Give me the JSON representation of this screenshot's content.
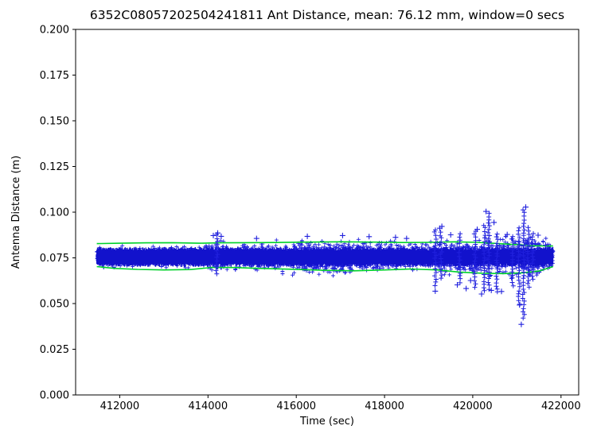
{
  "figure": {
    "background": "#ffffff"
  },
  "chart_data": {
    "type": "scatter",
    "title": "6352C08057202504241811 Ant Distance, mean: 76.12 mm, window=0 secs",
    "xlabel": "Time (sec)",
    "ylabel": "Antenna Distance (m)",
    "mean_mm": 76.12,
    "window_secs": 0,
    "xlim": [
      411000,
      422400
    ],
    "ylim": [
      0.0,
      0.2
    ],
    "xticks": [
      412000,
      414000,
      416000,
      418000,
      420000,
      422000
    ],
    "xtick_labels": [
      "412000",
      "414000",
      "416000",
      "418000",
      "420000",
      "422000"
    ],
    "yticks": [
      0.0,
      0.025,
      0.05,
      0.075,
      0.1,
      0.125,
      0.15,
      0.175,
      0.2
    ],
    "ytick_labels": [
      "0.000",
      "0.025",
      "0.050",
      "0.075",
      "0.100",
      "0.125",
      "0.150",
      "0.175",
      "0.200"
    ],
    "grid": false,
    "legend": "none",
    "colors": {
      "band_core": "#1212cc",
      "marker": "#2020dd",
      "envelope": "#00d22a",
      "axis": "#000000"
    },
    "series": [
      {
        "name": "antenna-distance-points",
        "marker": "+",
        "color": "#2020dd",
        "band": {
          "x_start": 411480,
          "x_end": 421820,
          "center": 0.0755,
          "core_half_width": 0.0045
        },
        "fuzz_profile": [
          [
            411480,
            0.0045
          ],
          [
            412200,
            0.005
          ],
          [
            413000,
            0.0048
          ],
          [
            413800,
            0.005
          ],
          [
            414150,
            0.0078
          ],
          [
            414500,
            0.0052
          ],
          [
            415000,
            0.0062
          ],
          [
            415600,
            0.007
          ],
          [
            416300,
            0.0078
          ],
          [
            417200,
            0.008
          ],
          [
            418000,
            0.0072
          ],
          [
            418500,
            0.006
          ],
          [
            419000,
            0.0058
          ],
          [
            419400,
            0.0078
          ],
          [
            420000,
            0.0072
          ],
          [
            420600,
            0.0088
          ],
          [
            421100,
            0.0098
          ],
          [
            421500,
            0.0085
          ],
          [
            421820,
            0.0058
          ]
        ],
        "n_fuzz_points": 3200
      },
      {
        "name": "upper-envelope",
        "type": "line",
        "color": "#00d22a",
        "points": [
          [
            411480,
            0.0828
          ],
          [
            412000,
            0.083
          ],
          [
            412600,
            0.0832
          ],
          [
            413200,
            0.0833
          ],
          [
            413800,
            0.083
          ],
          [
            414200,
            0.0832
          ],
          [
            414800,
            0.0833
          ],
          [
            415500,
            0.0834
          ],
          [
            416200,
            0.0836
          ],
          [
            417000,
            0.0838
          ],
          [
            417800,
            0.0836
          ],
          [
            418400,
            0.0834
          ],
          [
            419000,
            0.0835
          ],
          [
            419600,
            0.0838
          ],
          [
            420100,
            0.0835
          ],
          [
            420600,
            0.0828
          ],
          [
            421000,
            0.0822
          ],
          [
            421400,
            0.0816
          ],
          [
            421820,
            0.0815
          ]
        ]
      },
      {
        "name": "lower-envelope",
        "type": "line",
        "color": "#00d22a",
        "points": [
          [
            411480,
            0.0702
          ],
          [
            411900,
            0.0692
          ],
          [
            412400,
            0.0687
          ],
          [
            413000,
            0.0684
          ],
          [
            413600,
            0.0686
          ],
          [
            414100,
            0.0698
          ],
          [
            414600,
            0.0697
          ],
          [
            415200,
            0.0692
          ],
          [
            415900,
            0.0688
          ],
          [
            416600,
            0.0682
          ],
          [
            417300,
            0.0679
          ],
          [
            418000,
            0.0684
          ],
          [
            418600,
            0.0689
          ],
          [
            419200,
            0.0684
          ],
          [
            419700,
            0.0672
          ],
          [
            420200,
            0.0666
          ],
          [
            420700,
            0.0664
          ],
          [
            421100,
            0.0668
          ],
          [
            421500,
            0.0678
          ],
          [
            421820,
            0.0702
          ]
        ]
      },
      {
        "name": "outlier-spike-columns",
        "marker": "+",
        "color": "#2020dd",
        "columns": [
          {
            "x": 414200,
            "y_min": 0.066,
            "y_max": 0.088
          },
          {
            "x": 419150,
            "y_min": 0.06,
            "y_max": 0.0915
          },
          {
            "x": 419280,
            "y_min": 0.064,
            "y_max": 0.0905
          },
          {
            "x": 419700,
            "y_min": 0.0615,
            "y_max": 0.089
          },
          {
            "x": 420050,
            "y_min": 0.059,
            "y_max": 0.09
          },
          {
            "x": 420260,
            "y_min": 0.057,
            "y_max": 0.0935
          },
          {
            "x": 420360,
            "y_min": 0.058,
            "y_max": 0.1
          },
          {
            "x": 420550,
            "y_min": 0.056,
            "y_max": 0.09
          },
          {
            "x": 420900,
            "y_min": 0.06,
            "y_max": 0.088
          },
          {
            "x": 421050,
            "y_min": 0.05,
            "y_max": 0.092
          },
          {
            "x": 421150,
            "y_min": 0.042,
            "y_max": 0.102
          },
          {
            "x": 421260,
            "y_min": 0.059,
            "y_max": 0.0925
          },
          {
            "x": 421360,
            "y_min": 0.063,
            "y_max": 0.089
          }
        ]
      },
      {
        "name": "outlier-points",
        "marker": "+",
        "color": "#2020dd",
        "points": [
          [
            414120,
            0.0872
          ],
          [
            414220,
            0.0886
          ],
          [
            414300,
            0.0868
          ],
          [
            415100,
            0.0856
          ],
          [
            416250,
            0.0868
          ],
          [
            417050,
            0.0872
          ],
          [
            417650,
            0.0866
          ],
          [
            418250,
            0.0862
          ],
          [
            418500,
            0.0856
          ],
          [
            419150,
            0.0568
          ],
          [
            419250,
            0.0912
          ],
          [
            419300,
            0.0922
          ],
          [
            419500,
            0.0876
          ],
          [
            419650,
            0.0602
          ],
          [
            419850,
            0.0582
          ],
          [
            419950,
            0.0626
          ],
          [
            420100,
            0.0906
          ],
          [
            420200,
            0.0552
          ],
          [
            420300,
            0.1004
          ],
          [
            420420,
            0.0572
          ],
          [
            420480,
            0.0944
          ],
          [
            420650,
            0.0566
          ],
          [
            420780,
            0.0878
          ],
          [
            421060,
            0.0492
          ],
          [
            421100,
            0.0386
          ],
          [
            421200,
            0.1028
          ],
          [
            421480,
            0.0874
          ],
          [
            421650,
            0.082
          ]
        ]
      }
    ]
  }
}
